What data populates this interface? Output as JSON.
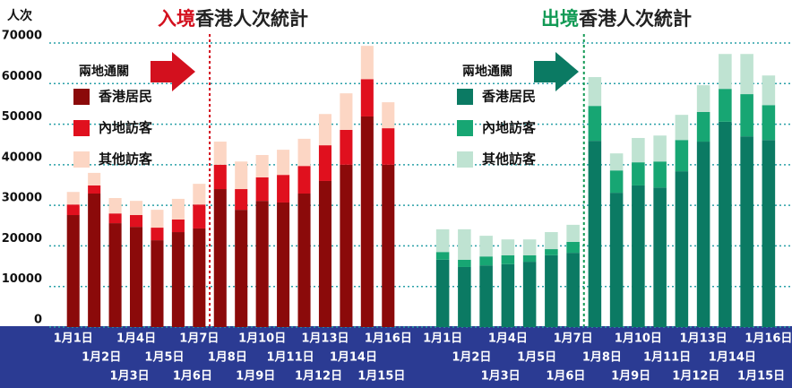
{
  "chart_data": [
    {
      "type": "bar",
      "stacked": true,
      "title_prefix": "入境",
      "title": "香港人次統計",
      "title_prefix_color": "#d3101e",
      "ylabel": "人次",
      "legend_title": "兩地通關",
      "legend_arrow_color": "#d3101e",
      "divider_color": "#d3101e",
      "categories": [
        "1月1日",
        "1月2日",
        "1月3日",
        "1月4日",
        "1月5日",
        "1月6日",
        "1月7日",
        "1月8日",
        "1月9日",
        "1月10日",
        "1月11日",
        "1月12日",
        "1月13日",
        "1月14日",
        "1月15日",
        "1月16日"
      ],
      "series": [
        {
          "name": "香港居民",
          "color": "#8b0a0a",
          "values": [
            27600,
            32900,
            25600,
            24700,
            21400,
            23400,
            24300,
            34000,
            28900,
            31100,
            30700,
            32900,
            36000,
            40000,
            51900,
            40000
          ]
        },
        {
          "name": "內地訪客",
          "color": "#e0101e",
          "values": [
            2600,
            2000,
            2400,
            2900,
            3100,
            3100,
            5900,
            6000,
            5100,
            5800,
            6800,
            6800,
            8800,
            8600,
            9200,
            9000
          ]
        },
        {
          "name": "其他訪客",
          "color": "#fcd6c4",
          "values": [
            3100,
            3100,
            3800,
            3500,
            4400,
            5100,
            5100,
            5700,
            6800,
            5500,
            6200,
            6700,
            7700,
            9000,
            8200,
            6400
          ]
        }
      ],
      "ylim": [
        0,
        70000
      ],
      "yticks": [
        0,
        10000,
        20000,
        30000,
        40000,
        50000,
        60000,
        70000
      ],
      "grid": true
    },
    {
      "type": "bar",
      "stacked": true,
      "title_prefix": "出境",
      "title": "香港人次統計",
      "title_prefix_color": "#129a55",
      "legend_title": "兩地通關",
      "legend_arrow_color": "#0b7a63",
      "divider_color": "#129a55",
      "categories": [
        "1月1日",
        "1月2日",
        "1月3日",
        "1月4日",
        "1月5日",
        "1月6日",
        "1月7日",
        "1月8日",
        "1月9日",
        "1月10日",
        "1月11日",
        "1月12日",
        "1月13日",
        "1月14日",
        "1月15日",
        "1月16日"
      ],
      "series": [
        {
          "name": "香港居民",
          "color": "#0b7a63",
          "values": [
            16600,
            14800,
            15200,
            15500,
            16100,
            17700,
            18300,
            45900,
            33100,
            34900,
            34400,
            38400,
            45700,
            50600,
            47000,
            46100
          ]
        },
        {
          "name": "內地訪客",
          "color": "#17a673",
          "values": [
            1900,
            1800,
            2200,
            2200,
            1600,
            1500,
            2700,
            8600,
            5500,
            5700,
            6400,
            7700,
            7300,
            8100,
            10400,
            8600
          ]
        },
        {
          "name": "其他訪客",
          "color": "#bfe3d2",
          "values": [
            5600,
            7500,
            5100,
            3900,
            3900,
            4200,
            4200,
            7100,
            4200,
            6000,
            6400,
            6200,
            6600,
            8600,
            9900,
            7300
          ]
        }
      ],
      "ylim": [
        0,
        70000
      ]
    }
  ]
}
